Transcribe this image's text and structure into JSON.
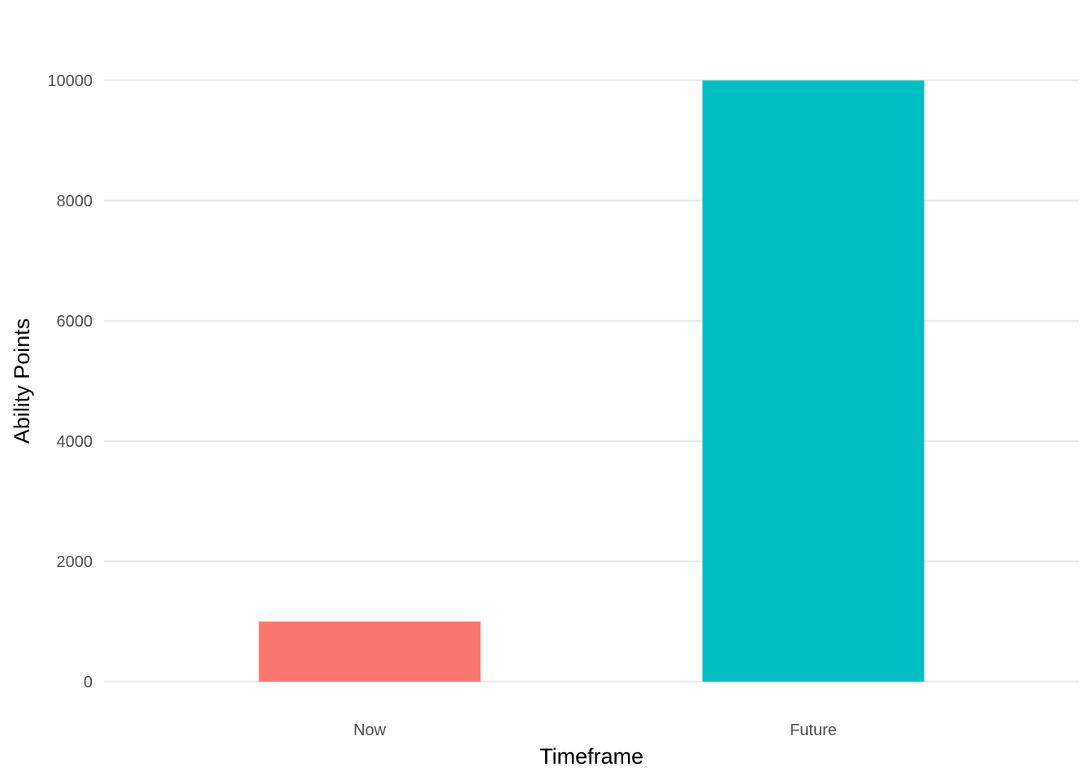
{
  "chart_data": {
    "type": "bar",
    "title": "",
    "xlabel": "Timeframe",
    "ylabel": "Ability Points",
    "categories": [
      "Now",
      "Future"
    ],
    "values": [
      1000,
      10000
    ],
    "colors": [
      "#F8766D",
      "#00BFC4"
    ],
    "ylim": [
      0,
      10000
    ],
    "yticks": [
      0,
      2000,
      4000,
      6000,
      8000,
      10000
    ],
    "ytick_labels": [
      "0",
      "2000",
      "4000",
      "6000",
      "8000",
      "10000"
    ],
    "grid": true,
    "legend": "none"
  }
}
